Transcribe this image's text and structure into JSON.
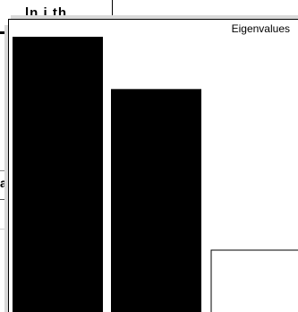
{
  "background_window": {
    "title_fragment": "ln i th",
    "side_label_fragment": "ar"
  },
  "chart_data": {
    "type": "bar",
    "title": "Eigenvalues",
    "categories": [
      "",
      ""
    ],
    "values": [
      1.0,
      0.81
    ],
    "ylim": [
      0,
      1.0
    ],
    "xlabel": "",
    "ylabel": "",
    "grid": false,
    "bar_color": "#000000",
    "note": ""
  },
  "colors": {
    "bar": "#000000",
    "panel_border": "#000000",
    "shadow": "#d9d9d9"
  }
}
